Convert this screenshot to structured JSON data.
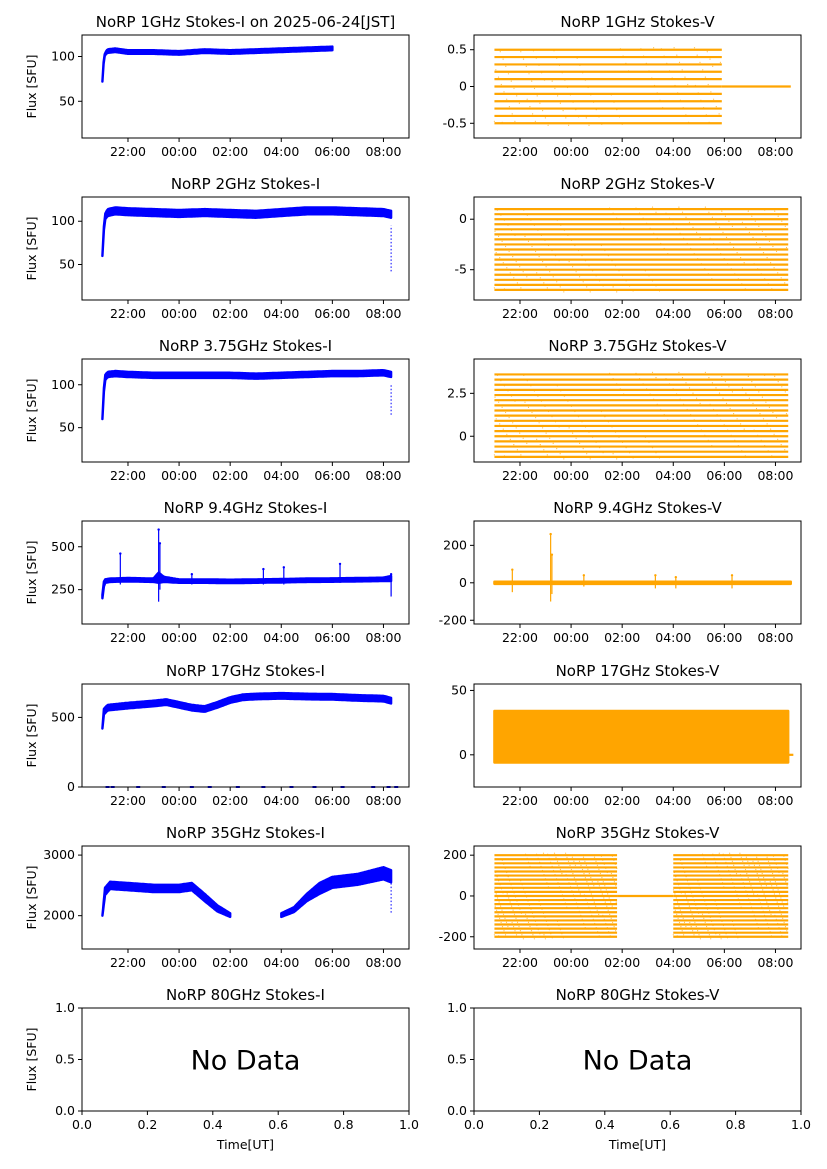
{
  "colors": {
    "stokes_i": "#0000ff",
    "stokes_v": "#ffa500",
    "axes": "#000000",
    "background": "#ffffff"
  },
  "time_ticks": [
    "22:00",
    "00:00",
    "02:00",
    "04:00",
    "06:00",
    "08:00"
  ],
  "no_data_ticks": [
    "0.0",
    "0.2",
    "0.4",
    "0.6",
    "0.8",
    "1.0"
  ],
  "chart_data": [
    {
      "id": "i1",
      "type": "scatter",
      "title": "NoRP 1GHz Stokes-I on 2025-06-24[JST]",
      "ylabel": "Flux [SFU]",
      "xlabel": "",
      "x_unit": "hours_UT_since_prev_midnight",
      "xlim": [
        20.2,
        33.0
      ],
      "ylim": [
        9,
        124
      ],
      "yticks": [
        50,
        100
      ],
      "xticks": [
        22,
        24,
        26,
        28,
        30,
        32
      ],
      "grid": false,
      "series": [
        {
          "color": "#0000ff",
          "x": [
            21.0,
            21.05,
            21.1,
            21.2,
            21.5,
            22,
            23,
            24,
            25,
            26,
            27,
            28,
            29,
            30,
            30.0
          ],
          "y": [
            72,
            95,
            103,
            106,
            107,
            105,
            105,
            104,
            106,
            105,
            106,
            107,
            108,
            109,
            106
          ],
          "band": [
            0,
            1,
            1,
            2,
            2,
            2,
            2,
            2,
            2,
            2,
            2,
            2,
            2,
            2,
            2
          ]
        }
      ]
    },
    {
      "id": "v1",
      "type": "scatter",
      "title": "NoRP 1GHz Stokes-V",
      "ylabel": "",
      "xlabel": "",
      "x_unit": "hours_UT_since_prev_midnight",
      "xlim": [
        20.2,
        33.0
      ],
      "ylim": [
        -0.7,
        0.7
      ],
      "yticks": [
        -0.5,
        0.0,
        0.5
      ],
      "xticks": [
        22,
        24,
        26,
        28,
        30,
        32
      ],
      "grid": false,
      "levels": [
        -0.5,
        -0.4,
        -0.3,
        -0.2,
        -0.1,
        0.0,
        0.1,
        0.2,
        0.3,
        0.4,
        0.5
      ],
      "level_start": 21.0,
      "level_end": 29.9,
      "tail": {
        "x": [
          29.9,
          32.6
        ],
        "y": 0.0
      }
    },
    {
      "id": "i2",
      "type": "scatter",
      "title": "NoRP 2GHz Stokes-I",
      "ylabel": "Flux [SFU]",
      "xlabel": "",
      "x_unit": "hours_UT_since_prev_midnight",
      "xlim": [
        20.2,
        33.0
      ],
      "ylim": [
        9,
        128
      ],
      "yticks": [
        50,
        100
      ],
      "xticks": [
        22,
        24,
        26,
        28,
        30,
        32
      ],
      "grid": false,
      "series": [
        {
          "color": "#0000ff",
          "x": [
            21.0,
            21.05,
            21.1,
            21.2,
            21.5,
            22,
            23,
            24,
            25,
            26,
            27,
            28,
            29,
            30,
            31,
            32,
            32.3
          ],
          "y": [
            60,
            90,
            105,
            110,
            112,
            111,
            110,
            109,
            110,
            109,
            108,
            110,
            112,
            112,
            111,
            110,
            108
          ],
          "band": [
            0,
            2,
            3,
            4,
            4,
            4,
            4,
            4,
            4,
            4,
            4,
            4,
            4,
            4,
            4,
            4,
            4
          ]
        }
      ],
      "outliers": {
        "x": 32.3,
        "y": [
          42,
          95
        ]
      }
    },
    {
      "id": "v2",
      "type": "scatter",
      "title": "NoRP 2GHz Stokes-V",
      "ylabel": "",
      "xlabel": "",
      "x_unit": "hours_UT_since_prev_midnight",
      "xlim": [
        20.2,
        33.0
      ],
      "ylim": [
        -8,
        2.2
      ],
      "yticks": [
        -5,
        0
      ],
      "xticks": [
        22,
        24,
        26,
        28,
        30,
        32
      ],
      "grid": false,
      "levels": [
        -7,
        -6.5,
        -6,
        -5.5,
        -5,
        -4.5,
        -4,
        -3.5,
        -3,
        -2.5,
        -2,
        -1.5,
        -1,
        -0.5,
        0,
        0.5,
        1
      ],
      "level_start": 21.0,
      "level_end": 32.5
    },
    {
      "id": "i3",
      "type": "scatter",
      "title": "NoRP 3.75GHz Stokes-I",
      "ylabel": "Flux [SFU]",
      "xlabel": "",
      "x_unit": "hours_UT_since_prev_midnight",
      "xlim": [
        20.2,
        33.0
      ],
      "ylim": [
        10,
        130
      ],
      "yticks": [
        50,
        100
      ],
      "xticks": [
        22,
        24,
        26,
        28,
        30,
        32
      ],
      "grid": false,
      "series": [
        {
          "color": "#0000ff",
          "x": [
            21.0,
            21.05,
            21.1,
            21.2,
            21.5,
            22,
            23,
            24,
            25,
            26,
            27,
            28,
            29,
            30,
            31,
            32,
            32.3
          ],
          "y": [
            60,
            92,
            108,
            112,
            113,
            112,
            111,
            111,
            111,
            111,
            110,
            111,
            112,
            113,
            113,
            114,
            112
          ],
          "band": [
            0,
            2,
            3,
            3,
            3,
            3,
            3,
            3,
            3,
            3,
            3,
            3,
            3,
            3,
            3,
            3,
            3
          ]
        }
      ],
      "outliers": {
        "x": 32.3,
        "y": [
          65,
          100
        ]
      }
    },
    {
      "id": "v3",
      "type": "scatter",
      "title": "NoRP 3.75GHz Stokes-V",
      "ylabel": "",
      "xlabel": "",
      "x_unit": "hours_UT_since_prev_midnight",
      "xlim": [
        20.2,
        33.0
      ],
      "ylim": [
        -1.5,
        4.5
      ],
      "yticks": [
        0.0,
        2.5
      ],
      "xticks": [
        22,
        24,
        26,
        28,
        30,
        32
      ],
      "grid": false,
      "levels": [
        -1.2,
        -0.9,
        -0.6,
        -0.3,
        0.0,
        0.3,
        0.6,
        0.9,
        1.2,
        1.5,
        1.8,
        2.1,
        2.4,
        2.7,
        3.0,
        3.3,
        3.6
      ],
      "level_start": 21.0,
      "level_end": 32.5
    },
    {
      "id": "i4",
      "type": "scatter",
      "title": "NoRP 9.4GHz Stokes-I",
      "ylabel": "Flux [SFU]",
      "xlabel": "",
      "x_unit": "hours_UT_since_prev_midnight",
      "xlim": [
        20.2,
        33.0
      ],
      "ylim": [
        50,
        650
      ],
      "yticks": [
        250,
        500
      ],
      "xticks": [
        22,
        24,
        26,
        28,
        30,
        32
      ],
      "grid": false,
      "series": [
        {
          "color": "#0000ff",
          "x": [
            21.0,
            21.05,
            21.1,
            21.3,
            22,
            23,
            23.2,
            23.4,
            24,
            25,
            26,
            27,
            28,
            29,
            30,
            31,
            32,
            32.3
          ],
          "y": [
            210,
            280,
            300,
            305,
            308,
            305,
            320,
            310,
            300,
            300,
            298,
            300,
            302,
            305,
            306,
            308,
            310,
            315
          ],
          "band": [
            10,
            15,
            10,
            10,
            10,
            10,
            30,
            15,
            10,
            10,
            10,
            10,
            10,
            10,
            10,
            10,
            10,
            15
          ]
        }
      ],
      "spikes": [
        {
          "x": 21.7,
          "y": [
            280,
            460
          ]
        },
        {
          "x": 23.2,
          "y": [
            180,
            600
          ]
        },
        {
          "x": 23.25,
          "y": [
            250,
            520
          ]
        },
        {
          "x": 24.5,
          "y": [
            280,
            340
          ]
        },
        {
          "x": 27.3,
          "y": [
            280,
            370
          ]
        },
        {
          "x": 28.1,
          "y": [
            280,
            380
          ]
        },
        {
          "x": 30.3,
          "y": [
            290,
            400
          ]
        },
        {
          "x": 32.3,
          "y": [
            210,
            340
          ]
        }
      ]
    },
    {
      "id": "v4",
      "type": "scatter",
      "title": "NoRP 9.4GHz Stokes-V",
      "ylabel": "",
      "xlabel": "",
      "x_unit": "hours_UT_since_prev_midnight",
      "xlim": [
        20.2,
        33.0
      ],
      "ylim": [
        -220,
        330
      ],
      "yticks": [
        -200,
        0,
        200
      ],
      "xticks": [
        22,
        24,
        26,
        28,
        30,
        32
      ],
      "grid": false,
      "series": [
        {
          "color": "#ffa500",
          "x": [
            21.0,
            32.6
          ],
          "y": [
            0,
            0
          ],
          "band": [
            6,
            6
          ]
        }
      ],
      "spikes": [
        {
          "x": 21.7,
          "y": [
            -50,
            70
          ]
        },
        {
          "x": 23.2,
          "y": [
            -100,
            260
          ]
        },
        {
          "x": 23.25,
          "y": [
            -60,
            150
          ]
        },
        {
          "x": 24.5,
          "y": [
            -20,
            40
          ]
        },
        {
          "x": 27.3,
          "y": [
            -30,
            40
          ]
        },
        {
          "x": 28.1,
          "y": [
            -30,
            30
          ]
        },
        {
          "x": 30.3,
          "y": [
            -30,
            40
          ]
        }
      ]
    },
    {
      "id": "i5",
      "type": "scatter",
      "title": "NoRP 17GHz Stokes-I",
      "ylabel": "Flux [SFU]",
      "xlabel": "",
      "x_unit": "hours_UT_since_prev_midnight",
      "xlim": [
        20.2,
        33.0
      ],
      "ylim": [
        0,
        740
      ],
      "yticks": [
        0,
        500
      ],
      "xticks": [
        22,
        24,
        26,
        28,
        30,
        32
      ],
      "grid": false,
      "series": [
        {
          "color": "#0000ff",
          "x": [
            21.0,
            21.05,
            21.2,
            22,
            23,
            23.5,
            24,
            24.5,
            25,
            25.5,
            26,
            26.5,
            27,
            28,
            29,
            30,
            31,
            32,
            32.3
          ],
          "y": [
            420,
            540,
            570,
            585,
            600,
            610,
            590,
            570,
            560,
            590,
            625,
            645,
            650,
            655,
            650,
            648,
            640,
            635,
            620
          ],
          "band": [
            0,
            20,
            20,
            20,
            20,
            20,
            20,
            20,
            20,
            20,
            20,
            20,
            20,
            20,
            20,
            20,
            20,
            20,
            20
          ]
        }
      ],
      "zero_marks": [
        21.2,
        21.4,
        22.4,
        23.4,
        24.5,
        25.2,
        26.3,
        27.3,
        28.4,
        29.3,
        30.4,
        31.6,
        32.2,
        32.5
      ]
    },
    {
      "id": "v5",
      "type": "scatter",
      "title": "NoRP 17GHz Stokes-V",
      "ylabel": "",
      "xlabel": "",
      "x_unit": "hours_UT_since_prev_midnight",
      "xlim": [
        20.2,
        33.0
      ],
      "ylim": [
        -25,
        55
      ],
      "yticks": [
        0,
        50
      ],
      "xticks": [
        22,
        24,
        26,
        28,
        30,
        32
      ],
      "grid": false,
      "series": [
        {
          "color": "#ffa500",
          "x": [
            21.0,
            32.5
          ],
          "y": [
            14,
            14
          ],
          "band": [
            20,
            20
          ]
        }
      ],
      "tail": {
        "x": [
          32.5,
          32.7
        ],
        "y": 0
      }
    },
    {
      "id": "i6",
      "type": "scatter",
      "title": "NoRP 35GHz Stokes-I",
      "ylabel": "Flux [SFU]",
      "xlabel": "",
      "x_unit": "hours_UT_since_prev_midnight",
      "xlim": [
        20.2,
        33.0
      ],
      "ylim": [
        1450,
        3150
      ],
      "yticks": [
        2000,
        3000
      ],
      "xticks": [
        22,
        24,
        26,
        28,
        30,
        32
      ],
      "grid": false,
      "series": [
        {
          "color": "#0000ff",
          "x": [
            21.0,
            21.1,
            21.3,
            22,
            23,
            24,
            24.5,
            25,
            25.5,
            26.0
          ],
          "y": [
            2000,
            2400,
            2500,
            2480,
            2450,
            2450,
            2480,
            2300,
            2120,
            2010
          ],
          "band": [
            0,
            60,
            60,
            60,
            60,
            60,
            60,
            60,
            50,
            30
          ]
        },
        {
          "color": "#0000ff",
          "x": [
            28.0,
            28.5,
            29,
            29.5,
            30,
            31,
            32,
            32.3
          ],
          "y": [
            2010,
            2100,
            2300,
            2450,
            2550,
            2600,
            2700,
            2650
          ],
          "band": [
            30,
            40,
            60,
            90,
            90,
            90,
            100,
            100
          ]
        }
      ],
      "outliers": {
        "x": 32.3,
        "y": [
          2050,
          2600
        ]
      }
    },
    {
      "id": "v6",
      "type": "scatter",
      "title": "NoRP 35GHz Stokes-V",
      "ylabel": "",
      "xlabel": "",
      "x_unit": "hours_UT_since_prev_midnight",
      "xlim": [
        20.2,
        33.0
      ],
      "ylim": [
        -260,
        245
      ],
      "yticks": [
        -200,
        0,
        200
      ],
      "xticks": [
        22,
        24,
        26,
        28,
        30,
        32
      ],
      "grid": false,
      "levels": [
        -200,
        -180,
        -160,
        -140,
        -120,
        -100,
        -80,
        -60,
        -40,
        -20,
        0,
        20,
        40,
        60,
        80,
        100,
        120,
        140,
        160,
        180,
        200
      ],
      "segments": [
        [
          21.0,
          25.8
        ],
        [
          28.0,
          32.5
        ]
      ],
      "tail": {
        "x": [
          25.8,
          28.0
        ],
        "y": 0
      }
    },
    {
      "id": "i7",
      "type": "none",
      "title": "NoRP 80GHz Stokes-I",
      "ylabel": "Flux [SFU]",
      "xlabel": "Time[UT]",
      "xlim": [
        0,
        1
      ],
      "ylim": [
        0,
        1
      ],
      "yticks": [
        "0.0",
        "0.5",
        "1.0"
      ],
      "xticks": [
        "0.0",
        "0.2",
        "0.4",
        "0.6",
        "0.8",
        "1.0"
      ],
      "annotation": "No Data"
    },
    {
      "id": "v7",
      "type": "none",
      "title": "NoRP 80GHz Stokes-V",
      "ylabel": "",
      "xlabel": "Time[UT]",
      "xlim": [
        0,
        1
      ],
      "ylim": [
        0,
        1
      ],
      "yticks": [
        "0.0",
        "0.5",
        "1.0"
      ],
      "xticks": [
        "0.0",
        "0.2",
        "0.4",
        "0.6",
        "0.8",
        "1.0"
      ],
      "annotation": "No Data"
    }
  ]
}
